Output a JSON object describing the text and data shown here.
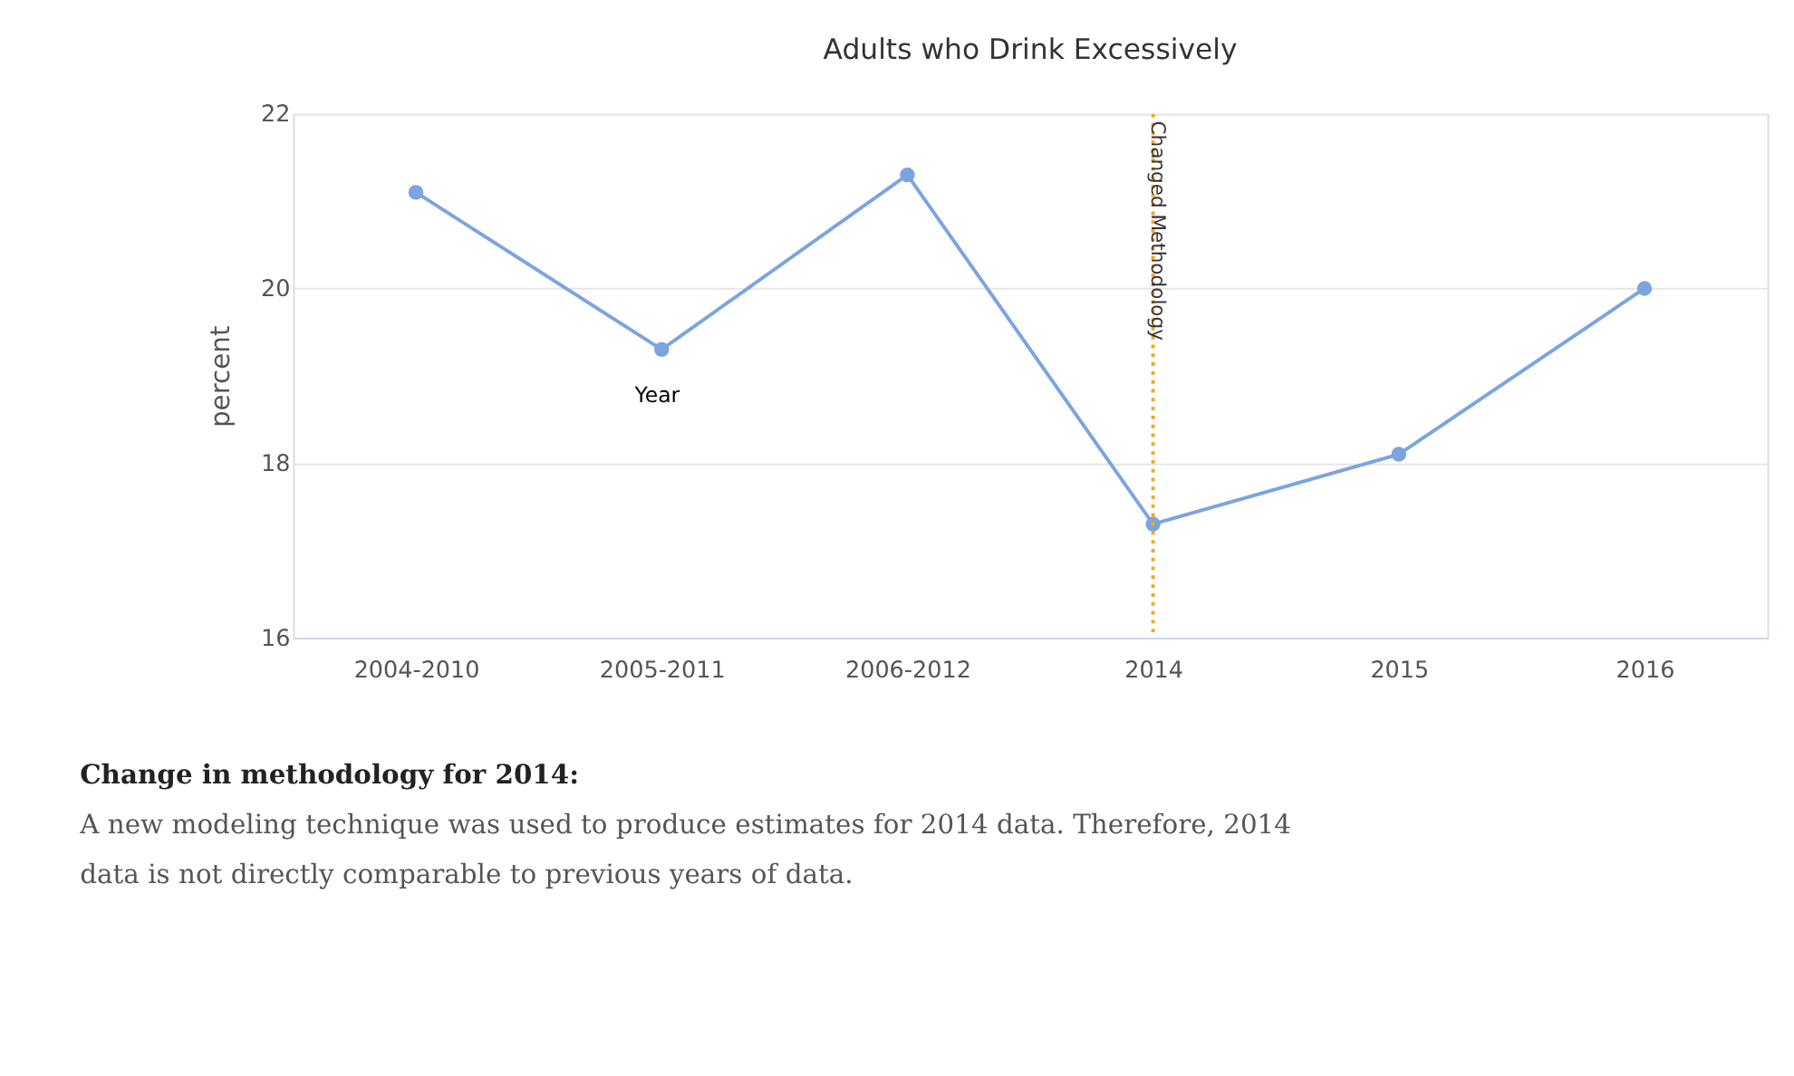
{
  "chart_data": {
    "type": "line",
    "title": "Adults who Drink Excessively",
    "ylabel": "percent",
    "categories": [
      "2004-2010",
      "2005-2011",
      "2006-2012",
      "2014",
      "2015",
      "2016"
    ],
    "series": [
      {
        "color": "#7ba4e0",
        "values": [
          21.1,
          19.3,
          21.3,
          17.3,
          18.1,
          20.0
        ]
      }
    ],
    "ylim": [
      16,
      22
    ],
    "yticks": [
      16,
      18,
      20,
      22
    ],
    "grid": "y",
    "marker": "circle",
    "line_style": "solid",
    "ref_lines": [
      {
        "axis": "x",
        "value": "2014",
        "label": "Changed Methodology",
        "color": "#f5a623",
        "line_style": "dotted"
      }
    ],
    "xlabel": "Year",
    "annotations": [
      "Change in methodology for 2014:",
      "A new modeling technique was used to produce estimates for 2014 data. Therefore, 2014",
      "data is not directly comparable to previous years of data."
    ]
  }
}
